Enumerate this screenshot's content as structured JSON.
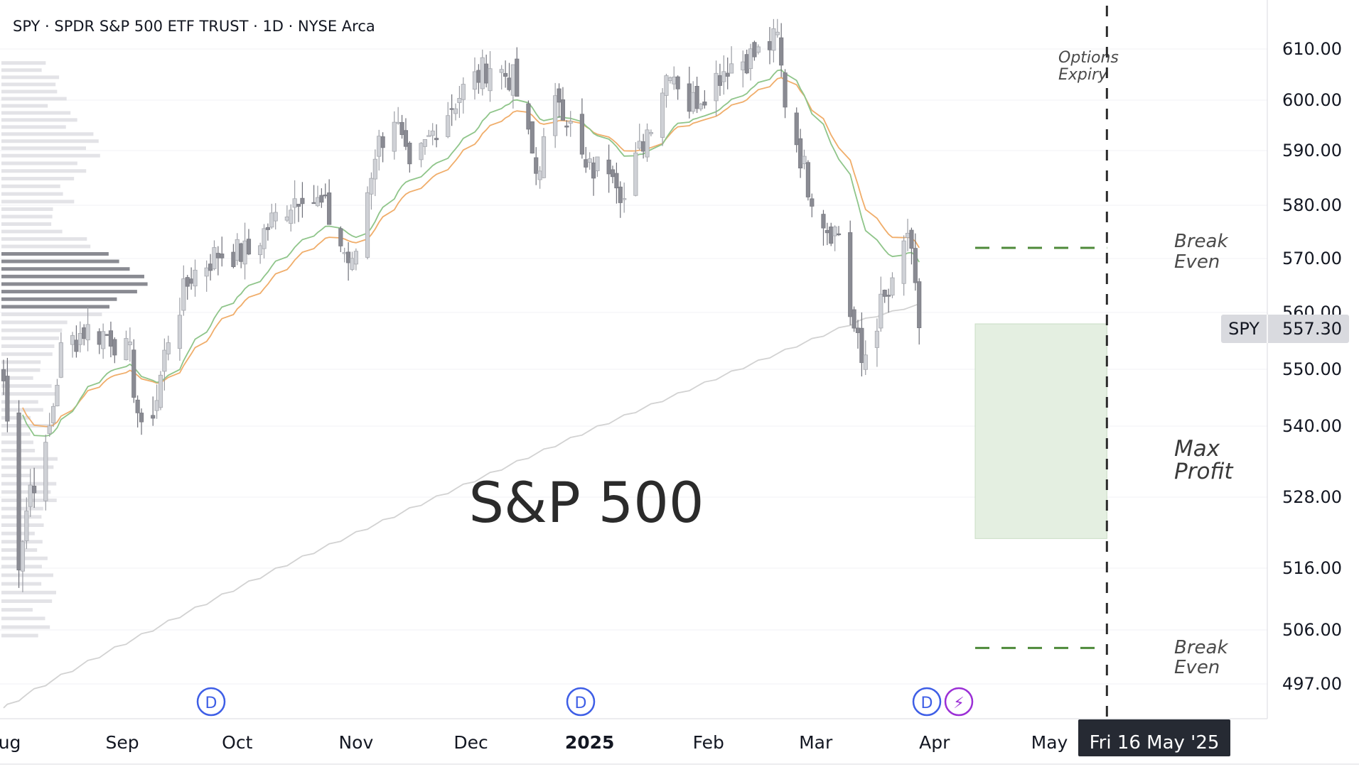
{
  "header": {
    "symbol_line": "SPY · SPDR S&P 500 ETF TRUST · 1D · NYSE Arca"
  },
  "watermark": "S&P 500",
  "colors": {
    "candle_up": "#cfd1d6",
    "candle_down": "#8a8b93",
    "ema_fast": "#8fc58a",
    "ema_slow": "#f0ad6a",
    "ma_200": "#d2d2d2",
    "max_profit_fill": "#e4efe1",
    "break_even_line": "#4e8a3a",
    "expiry_line": "#2b2b2b",
    "event_blue": "#3e5ee6",
    "event_purple": "#9b2fd6",
    "price_tag_bg": "#d9dadf",
    "date_tag_bg": "#262a33"
  },
  "price_axis": {
    "labels": [
      "610.00",
      "600.00",
      "590.00",
      "580.00",
      "570.00",
      "560.00",
      "550.00",
      "540.00",
      "528.00",
      "516.00",
      "506.00",
      "497.00"
    ]
  },
  "time_axis": {
    "labels": [
      "Aug",
      "Sep",
      "Oct",
      "Nov",
      "Dec",
      "2025",
      "Feb",
      "Mar",
      "Apr",
      "May"
    ]
  },
  "current_price": {
    "symbol": "SPY",
    "value": "557.30"
  },
  "annotations": {
    "options_expiry": [
      "Options",
      "Expiry"
    ],
    "break_even_upper": [
      "Break",
      "Even"
    ],
    "break_even_lower": [
      "Break",
      "Even"
    ],
    "max_profit": [
      "Max",
      "Profit"
    ],
    "expiry_date_tag": "Fri 16 May '25"
  },
  "events": [
    {
      "type": "dividend",
      "icon": "D",
      "month": "Sep"
    },
    {
      "type": "dividend",
      "icon": "D",
      "month": "Dec"
    },
    {
      "type": "dividend",
      "icon": "D",
      "month": "Mar"
    },
    {
      "type": "earnings",
      "icon": "⚡",
      "month": "Mar"
    }
  ],
  "chart_data": {
    "type": "candlestick",
    "title": "SPY · SPDR S&P 500 ETF TRUST · 1D · NYSE Arca",
    "interval": "1D",
    "x_range": [
      "2024-08-01",
      "2025-05-20"
    ],
    "y_range": [
      492,
      613
    ],
    "anchor_closes": [
      [
        "2024-08-01",
        548
      ],
      [
        "2024-08-05",
        518
      ],
      [
        "2024-08-08",
        530
      ],
      [
        "2024-08-12",
        535
      ],
      [
        "2024-08-16",
        553
      ],
      [
        "2024-08-22",
        557
      ],
      [
        "2024-08-29",
        556
      ],
      [
        "2024-09-03",
        552
      ],
      [
        "2024-09-06",
        538
      ],
      [
        "2024-09-10",
        545
      ],
      [
        "2024-09-13",
        556
      ],
      [
        "2024-09-19",
        567
      ],
      [
        "2024-09-26",
        571
      ],
      [
        "2024-10-04",
        571
      ],
      [
        "2024-10-10",
        577
      ],
      [
        "2024-10-18",
        583
      ],
      [
        "2024-10-24",
        579
      ],
      [
        "2024-10-31",
        568
      ],
      [
        "2024-11-06",
        590
      ],
      [
        "2024-11-11",
        597
      ],
      [
        "2024-11-15",
        585
      ],
      [
        "2024-11-22",
        595
      ],
      [
        "2024-11-29",
        602
      ],
      [
        "2024-12-06",
        607
      ],
      [
        "2024-12-12",
        604
      ],
      [
        "2024-12-18",
        586
      ],
      [
        "2024-12-24",
        601
      ],
      [
        "2024-12-31",
        586
      ],
      [
        "2025-01-07",
        588
      ],
      [
        "2025-01-10",
        581
      ],
      [
        "2025-01-15",
        592
      ],
      [
        "2025-01-22",
        607
      ],
      [
        "2025-01-27",
        599
      ],
      [
        "2025-01-31",
        602
      ],
      [
        "2025-02-06",
        607
      ],
      [
        "2025-02-14",
        609
      ],
      [
        "2025-02-19",
        612
      ],
      [
        "2025-02-21",
        600
      ],
      [
        "2025-02-27",
        584
      ],
      [
        "2025-03-04",
        576
      ],
      [
        "2025-03-07",
        575
      ],
      [
        "2025-03-10",
        560
      ],
      [
        "2025-03-13",
        551
      ],
      [
        "2025-03-18",
        561
      ],
      [
        "2025-03-21",
        564
      ],
      [
        "2025-03-25",
        575
      ],
      [
        "2025-03-28",
        557.3
      ]
    ],
    "indicators": [
      {
        "type": "EMA",
        "color": "#8fc58a"
      },
      {
        "type": "EMA",
        "color": "#f0ad6a"
      },
      {
        "type": "MA",
        "color": "#d2d2d2"
      }
    ],
    "volume_profile": true,
    "options_strategy": {
      "expiry": "2025-05-16",
      "break_even_upper": 572,
      "break_even_lower": 503,
      "max_profit_range": [
        521,
        558
      ]
    }
  }
}
